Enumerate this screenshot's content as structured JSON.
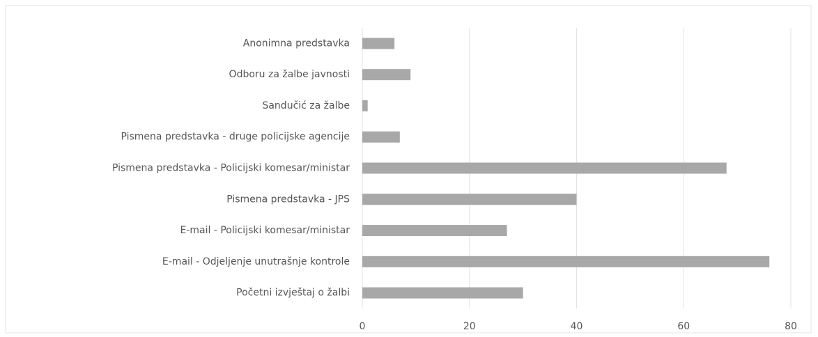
{
  "chart_data": {
    "type": "barh",
    "categories": [
      "Anonimna predstavka",
      "Odboru za žalbe javnosti",
      "Sandučić za žalbe",
      "Pismena predstavka - druge policijske agencije",
      "Pismena predstavka - Policijski komesar/ministar",
      "Pismena predstavka - JPS",
      "E-mail - Policijski komesar/ministar",
      "E-mail - Odjeljenje unutrašnje kontrole",
      "Početni izvještaj o žalbi"
    ],
    "values": [
      6,
      9,
      1,
      7,
      68,
      40,
      27,
      76,
      30
    ],
    "color": "#a8a8a8",
    "xlim": [
      0,
      80
    ],
    "xticks": [
      0,
      20,
      40,
      60,
      80
    ],
    "grid": true
  }
}
